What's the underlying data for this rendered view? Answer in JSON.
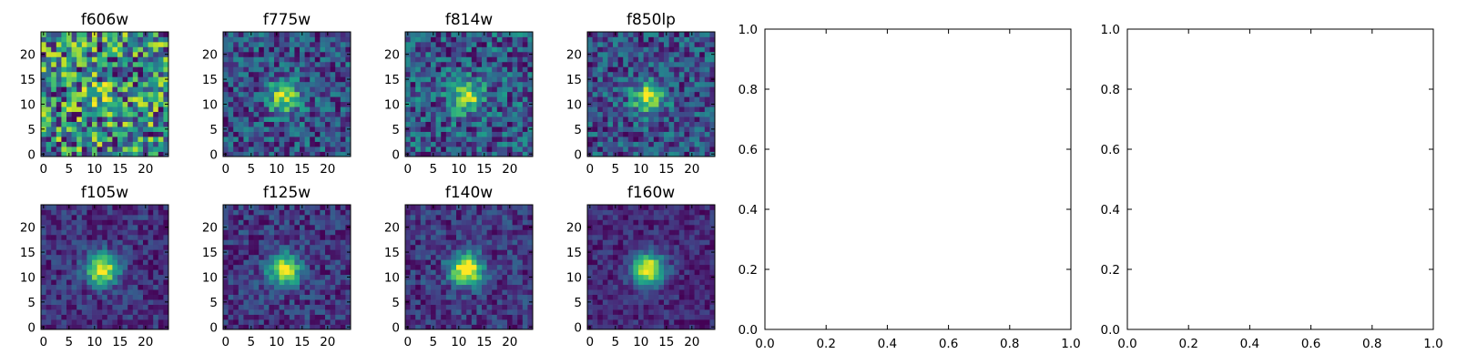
{
  "chart_data": [
    {
      "type": "heatmap",
      "title": "f606w",
      "xticks": [
        "0",
        "5",
        "10",
        "15",
        "20"
      ],
      "yticks": [
        "0",
        "5",
        "10",
        "15",
        "20"
      ],
      "size": 25,
      "source_peak": 0.2,
      "noise": 0.85,
      "base": 0.55,
      "seed": 11
    },
    {
      "type": "heatmap",
      "title": "f775w",
      "xticks": [
        "0",
        "5",
        "10",
        "15",
        "20"
      ],
      "yticks": [
        "0",
        "5",
        "10",
        "15",
        "20"
      ],
      "size": 25,
      "source_peak": 0.9,
      "noise": 0.7,
      "base": 0.45,
      "seed": 23
    },
    {
      "type": "heatmap",
      "title": "f814w",
      "xticks": [
        "0",
        "5",
        "10",
        "15",
        "20"
      ],
      "yticks": [
        "0",
        "5",
        "10",
        "15",
        "20"
      ],
      "size": 25,
      "source_peak": 0.8,
      "noise": 0.75,
      "base": 0.5,
      "seed": 37
    },
    {
      "type": "heatmap",
      "title": "f850lp",
      "xticks": [
        "0",
        "5",
        "10",
        "15",
        "20"
      ],
      "yticks": [
        "0",
        "5",
        "10",
        "15",
        "20"
      ],
      "size": 25,
      "source_peak": 0.9,
      "noise": 0.7,
      "base": 0.45,
      "seed": 41
    },
    {
      "type": "heatmap",
      "title": "f105w",
      "xticks": [
        "0",
        "5",
        "10",
        "15",
        "20"
      ],
      "yticks": [
        "0",
        "5",
        "10",
        "15",
        "20"
      ],
      "size": 25,
      "source_peak": 1.0,
      "noise": 0.35,
      "base": 0.45,
      "seed": 53
    },
    {
      "type": "heatmap",
      "title": "f125w",
      "xticks": [
        "0",
        "5",
        "10",
        "15",
        "20"
      ],
      "yticks": [
        "0",
        "5",
        "10",
        "15",
        "20"
      ],
      "size": 25,
      "source_peak": 1.0,
      "noise": 0.4,
      "base": 0.45,
      "seed": 67
    },
    {
      "type": "heatmap",
      "title": "f140w",
      "xticks": [
        "0",
        "5",
        "10",
        "15",
        "20"
      ],
      "yticks": [
        "0",
        "5",
        "10",
        "15",
        "20"
      ],
      "size": 25,
      "source_peak": 1.0,
      "noise": 0.35,
      "base": 0.45,
      "seed": 79
    },
    {
      "type": "heatmap",
      "title": "f160w",
      "xticks": [
        "0",
        "5",
        "10",
        "15",
        "20"
      ],
      "yticks": [
        "0",
        "5",
        "10",
        "15",
        "20"
      ],
      "size": 25,
      "source_peak": 1.2,
      "noise": 0.3,
      "base": 0.25,
      "seed": 83
    },
    {
      "type": "line",
      "title": "",
      "series": [],
      "xlim": [
        0.0,
        1.0
      ],
      "ylim": [
        0.0,
        1.0
      ],
      "xticks": [
        "0.0",
        "0.2",
        "0.4",
        "0.6",
        "0.8",
        "1.0"
      ],
      "yticks": [
        "0.0",
        "0.2",
        "0.4",
        "0.6",
        "0.8",
        "1.0"
      ]
    },
    {
      "type": "line",
      "title": "",
      "series": [],
      "xlim": [
        0.0,
        1.0
      ],
      "ylim": [
        0.0,
        1.0
      ],
      "xticks": [
        "0.0",
        "0.2",
        "0.4",
        "0.6",
        "0.8",
        "1.0"
      ],
      "yticks": [
        "0.0",
        "0.2",
        "0.4",
        "0.6",
        "0.8",
        "1.0"
      ]
    }
  ]
}
